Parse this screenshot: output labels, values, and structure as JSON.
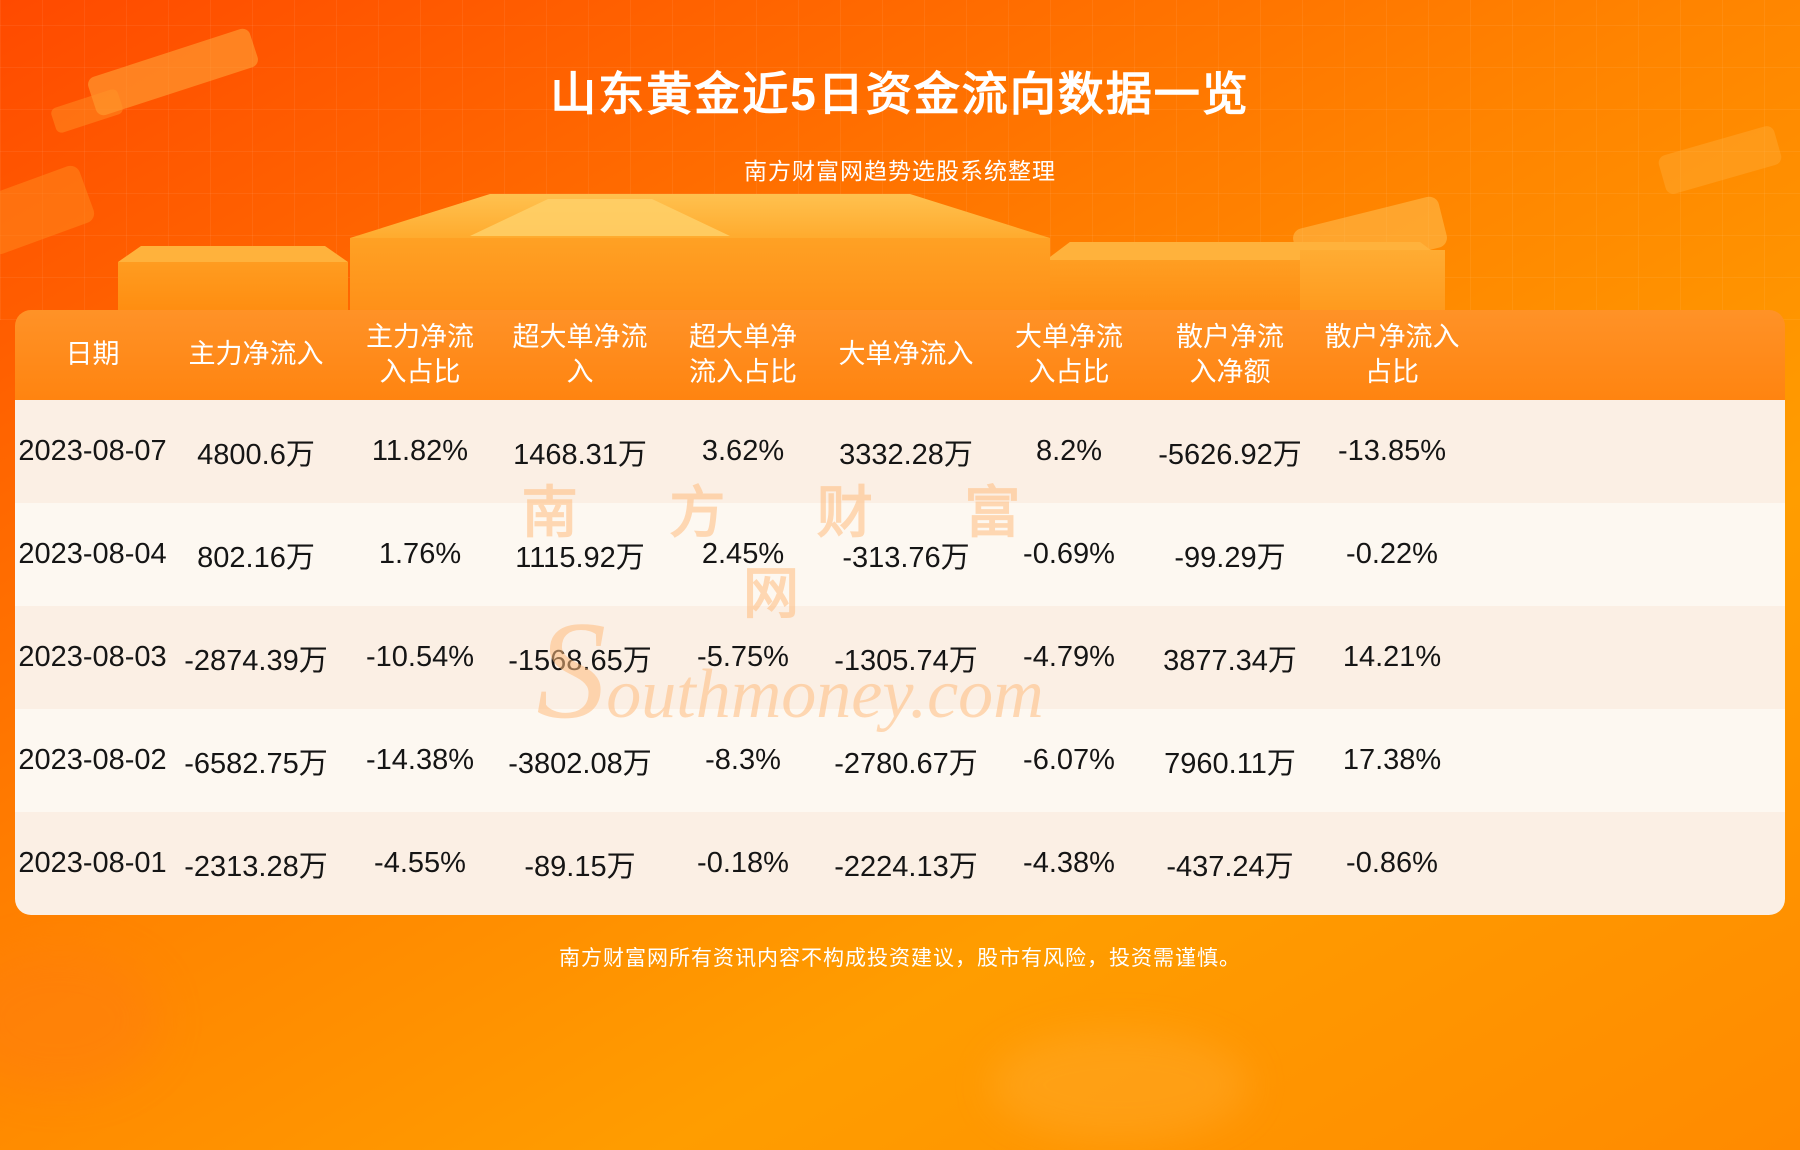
{
  "page": {
    "title": "山东黄金近5日资金流向数据一览",
    "subtitle": "南方财富网趋势选股系统整理",
    "footer": "南方财富网所有资讯内容不构成投资建议，股市有风险，投资需谨慎。"
  },
  "watermark": {
    "zh": "南 方 财 富 网",
    "en": "Southmoney.com"
  },
  "colors": {
    "background_orange_top": "#ff4a00",
    "background_orange_bottom": "#ff9d00",
    "table_header_orange": "#ff8a1a",
    "row_alt_dark": "#fbefe4",
    "row_alt_light": "#fdf8f1",
    "header_text": "#ffffff",
    "body_text": "#151515"
  },
  "chart_data": {
    "type": "table",
    "title": "山东黄金近5日资金流向数据一览",
    "columns": [
      "日期",
      "主力净流入",
      "主力净流入占比",
      "超大单净流入",
      "超大单净流入占比",
      "大单净流入",
      "大单净流入占比",
      "散户净流入净额",
      "散户净流入占比"
    ],
    "rows": [
      [
        "2023-08-07",
        "4800.6万",
        "11.82%",
        "1468.31万",
        "3.62%",
        "3332.28万",
        "8.2%",
        "-5626.92万",
        "-13.85%"
      ],
      [
        "2023-08-04",
        "802.16万",
        "1.76%",
        "1115.92万",
        "2.45%",
        "-313.76万",
        "-0.69%",
        "-99.29万",
        "-0.22%"
      ],
      [
        "2023-08-03",
        "-2874.39万",
        "-10.54%",
        "-1568.65万",
        "-5.75%",
        "-1305.74万",
        "-4.79%",
        "3877.34万",
        "14.21%"
      ],
      [
        "2023-08-02",
        "-6582.75万",
        "-14.38%",
        "-3802.08万",
        "-8.3%",
        "-2780.67万",
        "-6.07%",
        "7960.11万",
        "17.38%"
      ],
      [
        "2023-08-01",
        "-2313.28万",
        "-4.55%",
        "-89.15万",
        "-0.18%",
        "-2224.13万",
        "-4.38%",
        "-437.24万",
        "-0.86%"
      ]
    ]
  }
}
